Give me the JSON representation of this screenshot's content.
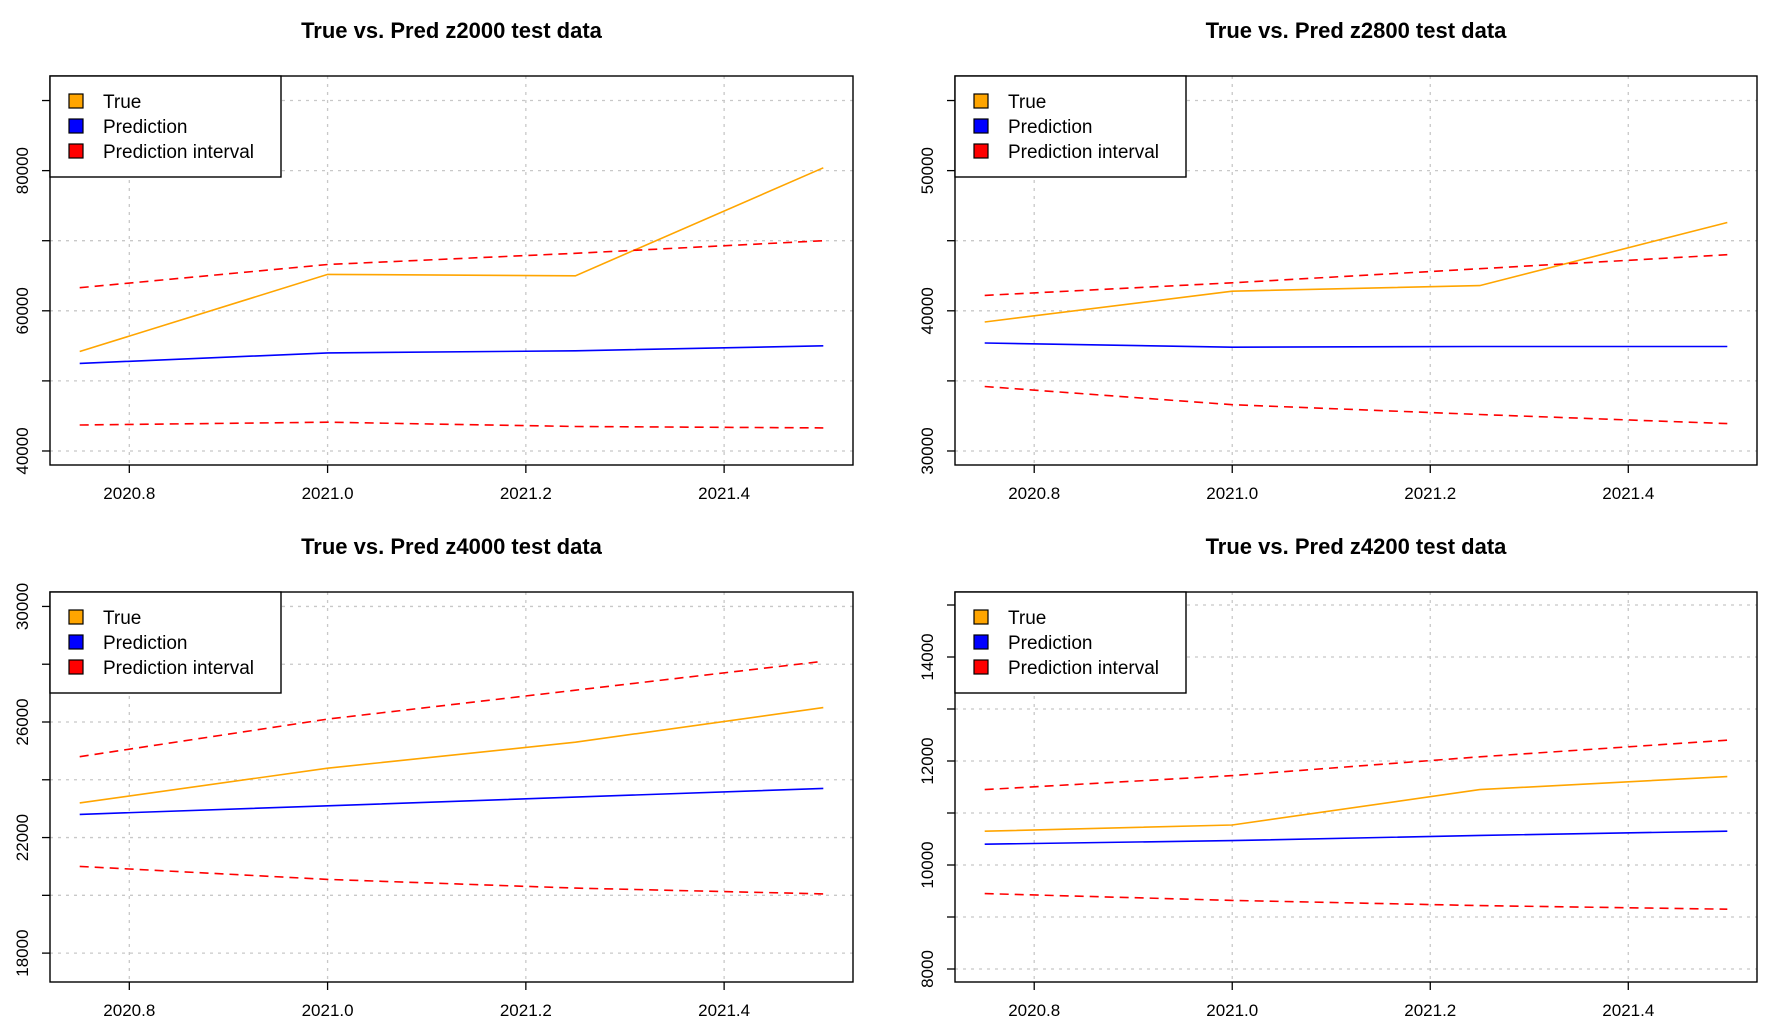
{
  "chart_data": [
    {
      "type": "line",
      "title": "True vs. Pred z2000 test data",
      "xlabel": "",
      "ylabel": "",
      "xlim": [
        2020.72,
        2021.53
      ],
      "ylim": [
        38000,
        93500
      ],
      "x_ticks": [
        2020.8,
        2021.0,
        2021.2,
        2021.4
      ],
      "x_tick_labels": [
        "2020.8",
        "2021.0",
        "2021.2",
        "2021.4"
      ],
      "y_ticks": [
        40000,
        50000,
        60000,
        70000,
        80000,
        90000
      ],
      "y_tick_labels": [
        "40000",
        "",
        "60000",
        "",
        "80000",
        ""
      ],
      "grid": true,
      "legend_position": "top-left",
      "x": [
        2020.75,
        2021.0,
        2021.25,
        2021.5
      ],
      "series": [
        {
          "name": "True",
          "color": "#FFA500",
          "style": "solid",
          "values": [
            54200,
            65200,
            65000,
            80400
          ]
        },
        {
          "name": "Prediction",
          "color": "#0000FF",
          "style": "solid",
          "values": [
            52500,
            54000,
            54300,
            55000
          ]
        },
        {
          "name": "Prediction interval",
          "color": "#FF0000",
          "style": "dashed",
          "values": [
            63300,
            66600,
            68200,
            70000
          ]
        },
        {
          "name": "Prediction interval",
          "color": "#FF0000",
          "style": "dashed",
          "values": [
            43700,
            44100,
            43500,
            43300
          ]
        }
      ]
    },
    {
      "type": "line",
      "title": "True vs. Pred z2800 test data",
      "xlabel": "",
      "ylabel": "",
      "xlim": [
        2020.72,
        2021.53
      ],
      "ylim": [
        29000,
        56750
      ],
      "x_ticks": [
        2020.8,
        2021.0,
        2021.2,
        2021.4
      ],
      "x_tick_labels": [
        "2020.8",
        "2021.0",
        "2021.2",
        "2021.4"
      ],
      "y_ticks": [
        30000,
        35000,
        40000,
        45000,
        50000,
        55000
      ],
      "y_tick_labels": [
        "30000",
        "",
        "40000",
        "",
        "50000",
        ""
      ],
      "grid": true,
      "legend_position": "top-left",
      "x": [
        2020.75,
        2021.0,
        2021.25,
        2021.5
      ],
      "series": [
        {
          "name": "True",
          "color": "#FFA500",
          "style": "solid",
          "values": [
            39200,
            41400,
            41800,
            46300
          ]
        },
        {
          "name": "Prediction",
          "color": "#0000FF",
          "style": "solid",
          "values": [
            37700,
            37400,
            37450,
            37450
          ]
        },
        {
          "name": "Prediction interval",
          "color": "#FF0000",
          "style": "dashed",
          "values": [
            41100,
            42000,
            43000,
            44000
          ]
        },
        {
          "name": "Prediction interval",
          "color": "#FF0000",
          "style": "dashed",
          "values": [
            34600,
            33300,
            32600,
            31950
          ]
        }
      ]
    },
    {
      "type": "line",
      "title": "True vs. Pred z4000 test data",
      "xlabel": "",
      "ylabel": "",
      "xlim": [
        2020.72,
        2021.53
      ],
      "ylim": [
        17000,
        30500
      ],
      "x_ticks": [
        2020.8,
        2021.0,
        2021.2,
        2021.4
      ],
      "x_tick_labels": [
        "2020.8",
        "2021.0",
        "2021.2",
        "2021.4"
      ],
      "y_ticks": [
        18000,
        20000,
        22000,
        24000,
        26000,
        28000,
        30000
      ],
      "y_tick_labels": [
        "18000",
        "",
        "22000",
        "",
        "26000",
        "",
        "30000"
      ],
      "grid": true,
      "legend_position": "top-left",
      "x": [
        2020.75,
        2021.0,
        2021.25,
        2021.5
      ],
      "series": [
        {
          "name": "True",
          "color": "#FFA500",
          "style": "solid",
          "values": [
            23200,
            24400,
            25300,
            26500
          ]
        },
        {
          "name": "Prediction",
          "color": "#0000FF",
          "style": "solid",
          "values": [
            22800,
            23100,
            23400,
            23700
          ]
        },
        {
          "name": "Prediction interval",
          "color": "#FF0000",
          "style": "dashed",
          "values": [
            24800,
            26100,
            27100,
            28100
          ]
        },
        {
          "name": "Prediction interval",
          "color": "#FF0000",
          "style": "dashed",
          "values": [
            21000,
            20550,
            20250,
            20050
          ]
        }
      ]
    },
    {
      "type": "line",
      "title": "True vs. Pred z4200 test data",
      "xlabel": "",
      "ylabel": "",
      "xlim": [
        2020.72,
        2021.53
      ],
      "ylim": [
        7750,
        15250
      ],
      "x_ticks": [
        2020.8,
        2021.0,
        2021.2,
        2021.4
      ],
      "x_tick_labels": [
        "2020.8",
        "2021.0",
        "2021.2",
        "2021.4"
      ],
      "y_ticks": [
        8000,
        9000,
        10000,
        11000,
        12000,
        13000,
        14000,
        15000
      ],
      "y_tick_labels": [
        "8000",
        "",
        "10000",
        "",
        "12000",
        "",
        "14000",
        ""
      ],
      "grid": true,
      "legend_position": "top-left",
      "x": [
        2020.75,
        2021.0,
        2021.25,
        2021.5
      ],
      "series": [
        {
          "name": "True",
          "color": "#FFA500",
          "style": "solid",
          "values": [
            10650,
            10770,
            11450,
            11700
          ]
        },
        {
          "name": "Prediction",
          "color": "#0000FF",
          "style": "solid",
          "values": [
            10400,
            10470,
            10570,
            10650
          ]
        },
        {
          "name": "Prediction interval",
          "color": "#FF0000",
          "style": "dashed",
          "values": [
            11450,
            11720,
            12080,
            12400
          ]
        },
        {
          "name": "Prediction interval",
          "color": "#FF0000",
          "style": "dashed",
          "values": [
            9450,
            9320,
            9220,
            9150
          ]
        }
      ]
    }
  ]
}
